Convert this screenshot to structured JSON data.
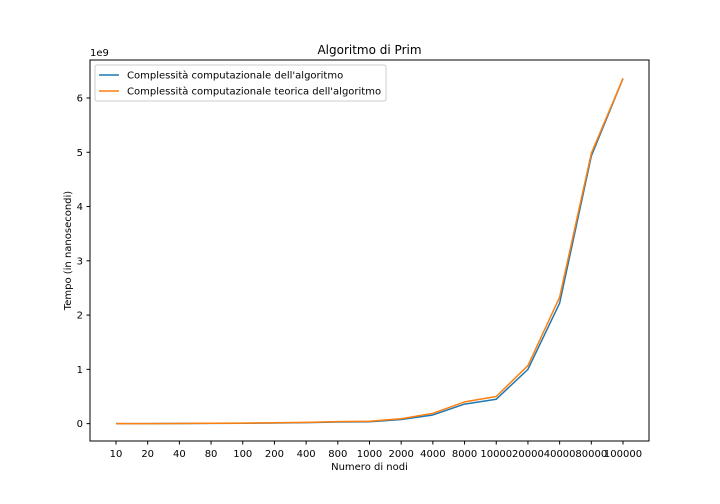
{
  "chart_data": {
    "type": "line",
    "title": "Algoritmo di Prim",
    "xlabel": "Numero di nodi",
    "ylabel": "Tempo (in nanosecondi)",
    "y_multiplier_label": "1e9",
    "categories": [
      "10",
      "20",
      "40",
      "80",
      "100",
      "200",
      "400",
      "800",
      "1000",
      "2000",
      "4000",
      "8000",
      "10000",
      "20000",
      "40000",
      "80000",
      "100000"
    ],
    "y_ticks": [
      0,
      1,
      2,
      3,
      4,
      5,
      6
    ],
    "ylim": [
      -0.32,
      6.7
    ],
    "legend_position": "top-left",
    "grid": false,
    "series": [
      {
        "name": "Complessità computazionale dell'algoritmo",
        "color": "#1f77b4",
        "values": [
          0.0,
          0.0,
          0.002,
          0.005,
          0.007,
          0.012,
          0.018,
          0.03,
          0.035,
          0.075,
          0.16,
          0.36,
          0.45,
          1.0,
          2.22,
          4.93,
          6.36
        ]
      },
      {
        "name": "Complessità computazionale teorica dell'algoritmo",
        "color": "#ff7f0e",
        "values": [
          0.0,
          0.001,
          0.003,
          0.007,
          0.009,
          0.016,
          0.024,
          0.036,
          0.045,
          0.09,
          0.19,
          0.4,
          0.5,
          1.07,
          2.33,
          4.98,
          6.36
        ]
      }
    ]
  }
}
